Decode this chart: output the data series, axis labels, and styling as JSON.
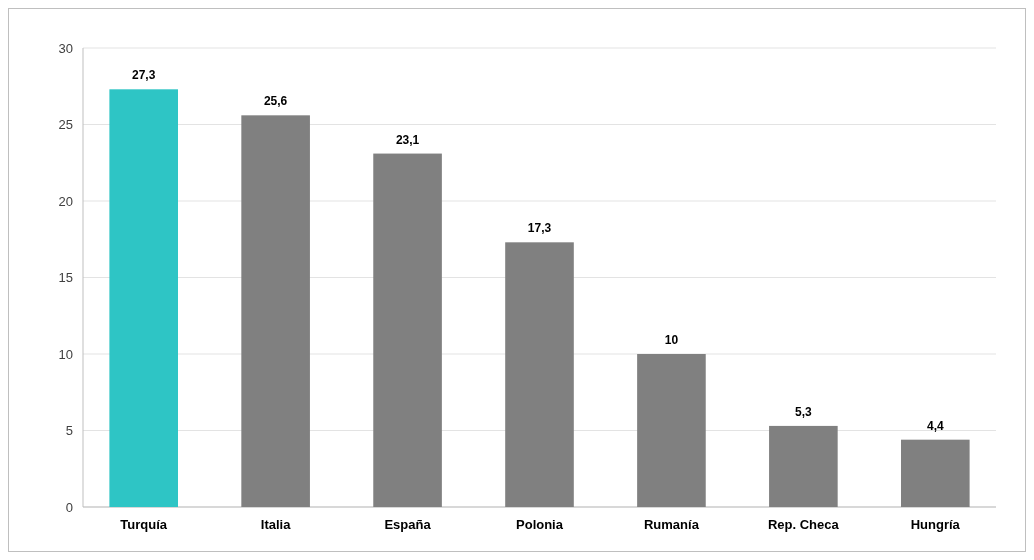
{
  "chart_data": {
    "type": "bar",
    "categories": [
      "Turquía",
      "Italia",
      "España",
      "Polonia",
      "Rumanía",
      "Rep. Checa",
      "Hungría"
    ],
    "values": [
      27.3,
      25.6,
      23.1,
      17.3,
      10,
      5.3,
      4.4
    ],
    "colors": [
      "#2ec5c5",
      "#808080",
      "#808080",
      "#808080",
      "#808080",
      "#808080",
      "#808080"
    ],
    "value_labels": [
      "27,3",
      "25,6",
      "23,1",
      "17,3",
      "10",
      "5,3",
      "4,4"
    ],
    "ylim": [
      0,
      30
    ],
    "yticks": [
      0,
      5,
      10,
      15,
      20,
      25,
      30
    ],
    "grid": "y"
  }
}
